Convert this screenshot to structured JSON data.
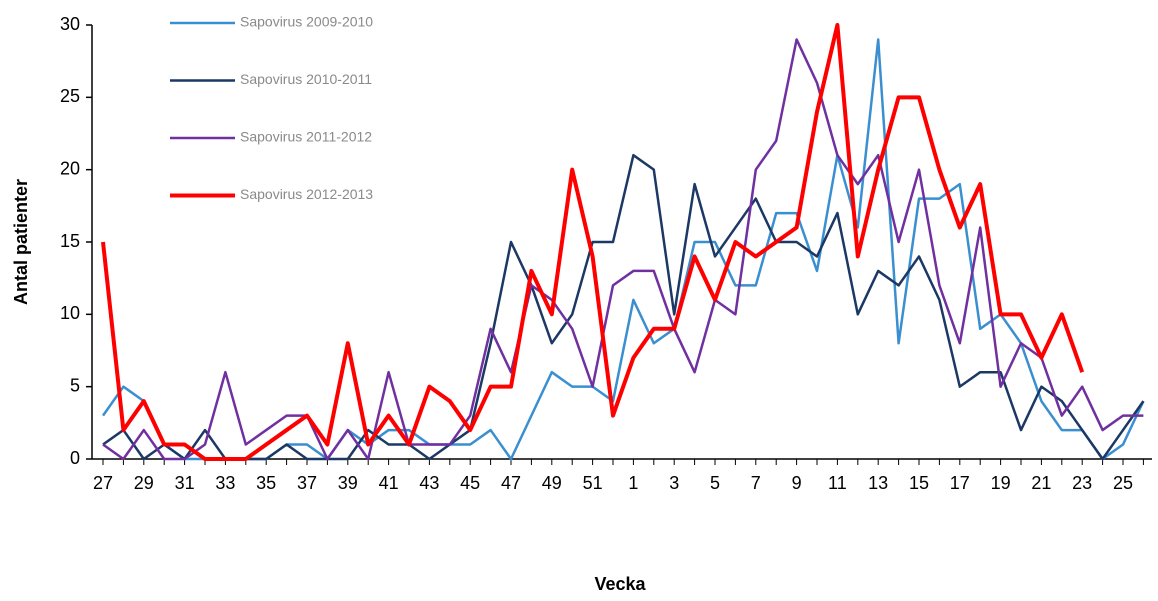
{
  "chart_data": {
    "type": "line",
    "x_label": "Vecka",
    "y_label": "Antal patienter",
    "categories": [
      "27",
      null,
      "29",
      null,
      "31",
      null,
      "33",
      null,
      "35",
      null,
      "37",
      null,
      "39",
      null,
      "41",
      null,
      "43",
      null,
      "45",
      null,
      "47",
      null,
      "49",
      null,
      "51",
      null,
      "1",
      null,
      "3",
      null,
      "5",
      null,
      "7",
      null,
      "9",
      null,
      "11",
      null,
      "13",
      null,
      "15",
      null,
      "17",
      null,
      "19",
      null,
      "21",
      null,
      "23",
      null,
      "25",
      null
    ],
    "series": [
      {
        "name": "Sapovirus 2009-2010",
        "color": "#3a8fd0",
        "width": 2.5,
        "values": [
          3,
          5,
          4,
          1,
          0,
          0,
          0,
          0,
          0,
          1,
          1,
          0,
          2,
          1,
          2,
          2,
          1,
          1,
          1,
          2,
          0,
          3,
          6,
          5,
          5,
          4,
          11,
          8,
          9,
          15,
          15,
          12,
          12,
          17,
          17,
          13,
          21,
          16,
          29,
          8,
          18,
          18,
          19,
          9,
          10,
          8,
          4,
          2,
          2,
          0,
          1,
          4
        ]
      },
      {
        "name": "Sapovirus 2010-2011",
        "color": "#1c3864",
        "width": 2.5,
        "values": [
          1,
          2,
          0,
          1,
          0,
          2,
          0,
          0,
          0,
          1,
          0,
          0,
          0,
          2,
          1,
          1,
          0,
          1,
          2,
          8,
          15,
          12,
          8,
          10,
          15,
          15,
          21,
          20,
          10,
          19,
          14,
          16,
          18,
          15,
          15,
          14,
          17,
          10,
          13,
          12,
          14,
          11,
          5,
          6,
          6,
          2,
          5,
          4,
          2,
          0,
          2,
          4
        ]
      },
      {
        "name": "Sapovirus 2011-2012",
        "color": "#7030a0",
        "width": 2.5,
        "values": [
          1,
          0,
          2,
          0,
          0,
          1,
          6,
          1,
          2,
          3,
          3,
          0,
          2,
          0,
          6,
          1,
          1,
          1,
          3,
          9,
          6,
          12,
          11,
          9,
          5,
          12,
          13,
          13,
          9,
          6,
          11,
          10,
          20,
          22,
          29,
          26,
          21,
          19,
          21,
          15,
          20,
          12,
          8,
          16,
          5,
          8,
          7,
          3,
          5,
          2,
          3,
          3
        ]
      },
      {
        "name": "Sapovirus 2012-2013",
        "color": "#ff0000",
        "width": 4,
        "values": [
          15,
          2,
          4,
          1,
          1,
          0,
          0,
          0,
          1,
          2,
          3,
          1,
          8,
          1,
          3,
          1,
          5,
          4,
          2,
          5,
          5,
          13,
          10,
          20,
          14,
          3,
          7,
          9,
          9,
          14,
          11,
          15,
          14,
          15,
          16,
          24,
          30,
          14,
          20,
          25,
          25,
          20,
          16,
          19,
          10,
          10,
          7,
          10,
          6,
          null,
          null,
          null
        ]
      }
    ],
    "ylim": [
      0,
      30
    ],
    "yticks": [
      0,
      5,
      10,
      15,
      20,
      25,
      30
    ]
  }
}
